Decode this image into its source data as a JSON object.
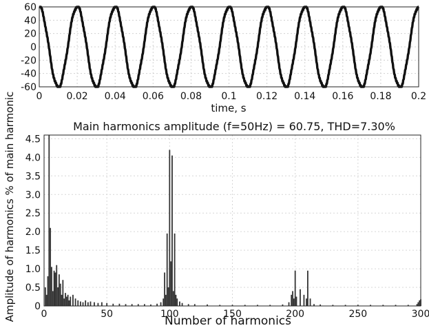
{
  "chart_data": [
    {
      "type": "line",
      "title": "",
      "xlabel": "time, s",
      "ylabel": "",
      "xlim": [
        0,
        0.2
      ],
      "ylim": [
        -60,
        60
      ],
      "x_ticks": [
        "0",
        "0.02",
        "0.04",
        "0.06",
        "0.08",
        "0.1",
        "0.12",
        "0.14",
        "0.16",
        "0.18",
        "0.2"
      ],
      "y_ticks": [
        "60",
        "40",
        "20",
        "0",
        "-20",
        "-40",
        "-60"
      ],
      "grid": true,
      "series": [
        {
          "amplitude": 60.75,
          "frequency_hz": 50,
          "harmonic_ripple_fraction": 0.073
        }
      ]
    },
    {
      "type": "bar",
      "title": "Main harmonics amplitude (f=50Hz) = 60.75, THD=7.30%",
      "xlabel": "Number of harmonics",
      "ylabel": "Amplitude of harmonics % of main harmonic",
      "xlim": [
        0,
        300
      ],
      "ylim": [
        0,
        4.6
      ],
      "x_ticks": [
        "0",
        "50",
        "100",
        "150",
        "200",
        "250",
        "300"
      ],
      "y_ticks": [
        "4.5",
        "4.0",
        "3.5",
        "3.0",
        "2.5",
        "2.0",
        "1.5",
        "1.0",
        "0.5",
        "0"
      ],
      "grid": true,
      "bars": [
        [
          1,
          0.5
        ],
        [
          2,
          0.3
        ],
        [
          3,
          0.8
        ],
        [
          4,
          4.6
        ],
        [
          5,
          2.1
        ],
        [
          6,
          1.05
        ],
        [
          7,
          0.4
        ],
        [
          8,
          0.95
        ],
        [
          9,
          0.9
        ],
        [
          10,
          1.1
        ],
        [
          11,
          0.5
        ],
        [
          12,
          0.85
        ],
        [
          13,
          0.6
        ],
        [
          14,
          0.3
        ],
        [
          15,
          0.7
        ],
        [
          16,
          0.2
        ],
        [
          17,
          0.35
        ],
        [
          18,
          0.25
        ],
        [
          19,
          0.3
        ],
        [
          20,
          0.15
        ],
        [
          21,
          0.25
        ],
        [
          23,
          0.3
        ],
        [
          25,
          0.2
        ],
        [
          27,
          0.15
        ],
        [
          29,
          0.12
        ],
        [
          31,
          0.1
        ],
        [
          33,
          0.15
        ],
        [
          35,
          0.1
        ],
        [
          37,
          0.12
        ],
        [
          40,
          0.1
        ],
        [
          43,
          0.08
        ],
        [
          46,
          0.1
        ],
        [
          50,
          0.08
        ],
        [
          55,
          0.06
        ],
        [
          60,
          0.06
        ],
        [
          65,
          0.05
        ],
        [
          70,
          0.05
        ],
        [
          75,
          0.05
        ],
        [
          80,
          0.05
        ],
        [
          85,
          0.04
        ],
        [
          90,
          0.06
        ],
        [
          93,
          0.1
        ],
        [
          95,
          0.2
        ],
        [
          96,
          0.9
        ],
        [
          97,
          0.3
        ],
        [
          98,
          1.95
        ],
        [
          99,
          0.5
        ],
        [
          100,
          4.2
        ],
        [
          101,
          1.2
        ],
        [
          102,
          4.05
        ],
        [
          103,
          0.4
        ],
        [
          104,
          1.95
        ],
        [
          105,
          0.3
        ],
        [
          106,
          0.2
        ],
        [
          108,
          0.12
        ],
        [
          110,
          0.08
        ],
        [
          115,
          0.05
        ],
        [
          120,
          0.05
        ],
        [
          130,
          0.04
        ],
        [
          140,
          0.03
        ],
        [
          150,
          0.03
        ],
        [
          160,
          0.03
        ],
        [
          170,
          0.03
        ],
        [
          180,
          0.03
        ],
        [
          190,
          0.04
        ],
        [
          195,
          0.1
        ],
        [
          197,
          0.3
        ],
        [
          198,
          0.4
        ],
        [
          199,
          0.2
        ],
        [
          200,
          0.95
        ],
        [
          201,
          0.25
        ],
        [
          204,
          0.45
        ],
        [
          207,
          0.3
        ],
        [
          209,
          0.2
        ],
        [
          210,
          0.95
        ],
        [
          212,
          0.2
        ],
        [
          215,
          0.05
        ],
        [
          220,
          0.04
        ],
        [
          230,
          0.03
        ],
        [
          240,
          0.03
        ],
        [
          250,
          0.03
        ],
        [
          260,
          0.03
        ],
        [
          270,
          0.03
        ],
        [
          280,
          0.03
        ],
        [
          290,
          0.03
        ],
        [
          297,
          0.05
        ],
        [
          298,
          0.1
        ],
        [
          299,
          0.15
        ],
        [
          300,
          0.18
        ]
      ]
    }
  ]
}
